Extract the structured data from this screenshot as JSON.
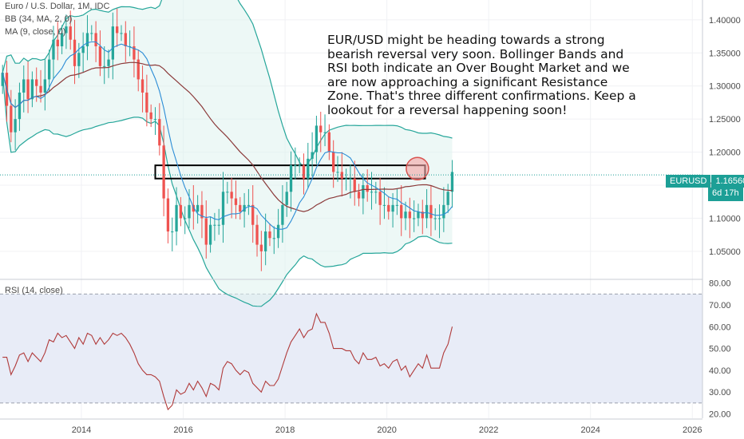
{
  "legend": {
    "title": "Euro / U.S. Dollar, 1M, IDC",
    "bb": "BB (34, MA, 2, 0)",
    "ma": "MA (9, close, 0)",
    "rsi": "RSI (14, close)"
  },
  "annotation": "EUR/USD might be heading towards a strong bearish reversal very soon. Bollinger Bands and RSI both indicate an Over Bought Market and we are now approaching a significant Resistance Zone. That's three different confirmations. Keep a lookout for a reversal happening soon!",
  "price_tag": {
    "symbol": "EURUSD",
    "value": "1.16560",
    "countdown": "6d 17h"
  },
  "colors": {
    "up": "#26a69a",
    "down": "#ef5350",
    "bb_band": "#26a69a",
    "bb_basis": "#8b3a3a",
    "ma": "#2b8cd6",
    "rsi_line": "#b03a3a",
    "rsi_fill": "#e8ecf7",
    "price_line": "#1c9f96"
  },
  "chart_data": [
    {
      "type": "candlestick",
      "title": "Euro / U.S. Dollar, 1M, IDC",
      "x_ticks": [
        "2014",
        "2016",
        "2018",
        "2020",
        "2022",
        "2024",
        "2026"
      ],
      "y_ticks": [
        "1.05000",
        "1.10000",
        "1.15000",
        "1.20000",
        "1.25000",
        "1.30000",
        "1.35000",
        "1.40000"
      ],
      "ylim": [
        1.01,
        1.43
      ],
      "xlim": [
        2012.4,
        2026.2
      ],
      "resistance_zone": {
        "x": [
          2015.45,
          2020.75
        ],
        "y": [
          1.16,
          1.18
        ]
      },
      "highlight_circle": {
        "x": 2020.6,
        "y": 1.175
      },
      "last_price": 1.1656,
      "close": [
        1.32,
        1.27,
        1.23,
        1.25,
        1.29,
        1.31,
        1.28,
        1.31,
        1.3,
        1.29,
        1.31,
        1.34,
        1.37,
        1.36,
        1.38,
        1.39,
        1.37,
        1.33,
        1.35,
        1.36,
        1.38,
        1.38,
        1.36,
        1.33,
        1.33,
        1.34,
        1.39,
        1.38,
        1.38,
        1.36,
        1.36,
        1.34,
        1.31,
        1.29,
        1.26,
        1.25,
        1.25,
        1.21,
        1.13,
        1.08,
        1.08,
        1.12,
        1.1,
        1.1,
        1.12,
        1.11,
        1.12,
        1.1,
        1.06,
        1.09,
        1.09,
        1.09,
        1.14,
        1.14,
        1.13,
        1.12,
        1.11,
        1.12,
        1.12,
        1.09,
        1.06,
        1.05,
        1.08,
        1.07,
        1.07,
        1.09,
        1.12,
        1.14,
        1.18,
        1.18,
        1.18,
        1.16,
        1.19,
        1.2,
        1.24,
        1.23,
        1.23,
        1.2,
        1.17,
        1.17,
        1.16,
        1.16,
        1.16,
        1.14,
        1.13,
        1.15,
        1.14,
        1.14,
        1.14,
        1.12,
        1.12,
        1.11,
        1.12,
        1.12,
        1.1,
        1.11,
        1.1,
        1.1,
        1.11,
        1.1,
        1.12,
        1.1,
        1.1,
        1.1,
        1.12,
        1.14,
        1.17
      ]
    },
    {
      "type": "line",
      "title": "RSI (14, close)",
      "y_ticks": [
        "20.00",
        "30.00",
        "40.00",
        "50.00",
        "60.00",
        "70.00",
        "80.00"
      ],
      "ylim": [
        18,
        81
      ],
      "band": [
        25,
        75
      ],
      "values": [
        46,
        46,
        38,
        42,
        47,
        48,
        44,
        48,
        46,
        44,
        48,
        54,
        53,
        57,
        55,
        56,
        53,
        50,
        55,
        52,
        57,
        56,
        52,
        55,
        52,
        54,
        57,
        56,
        57,
        55,
        52,
        48,
        43,
        40,
        38,
        38,
        37,
        35,
        28,
        22,
        24,
        31,
        29,
        30,
        34,
        31,
        35,
        32,
        28,
        34,
        33,
        31,
        41,
        44,
        43,
        40,
        38,
        40,
        39,
        34,
        32,
        30,
        35,
        33,
        33,
        36,
        42,
        48,
        53,
        56,
        59,
        55,
        58,
        59,
        66,
        62,
        62,
        57,
        50,
        50,
        50,
        49,
        49,
        45,
        43,
        48,
        45,
        45,
        46,
        42,
        43,
        41,
        44,
        45,
        40,
        42,
        37,
        40,
        43,
        41,
        47,
        41,
        41,
        41,
        48,
        52,
        60
      ]
    }
  ]
}
